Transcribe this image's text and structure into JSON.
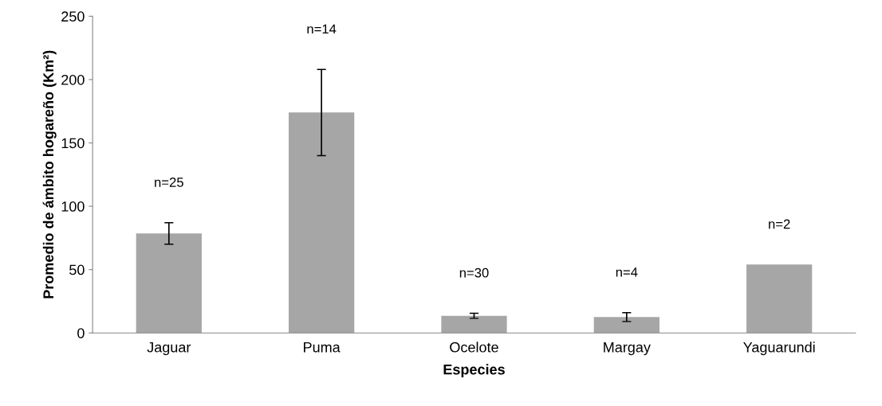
{
  "chart_data": {
    "type": "bar",
    "xlabel": "Especies",
    "ylabel": "Promedio de ámbito hogareño (Km²)",
    "categories": [
      "Jaguar",
      "Puma",
      "Ocelote",
      "Margay",
      "Yaguarundi"
    ],
    "values": [
      78.5,
      174,
      13.5,
      12.5,
      54
    ],
    "errors": [
      [
        70,
        87
      ],
      [
        140,
        208
      ],
      [
        11.5,
        15.5
      ],
      [
        9,
        16
      ],
      null
    ],
    "color": "#a6a6a6",
    "ylim": [
      0,
      250
    ],
    "yticks": [
      0,
      50,
      100,
      150,
      200,
      250
    ],
    "grid": false,
    "legend": false,
    "annotations": [
      "n=25",
      "n=14",
      "n=30",
      "n=4",
      "n=2"
    ]
  }
}
